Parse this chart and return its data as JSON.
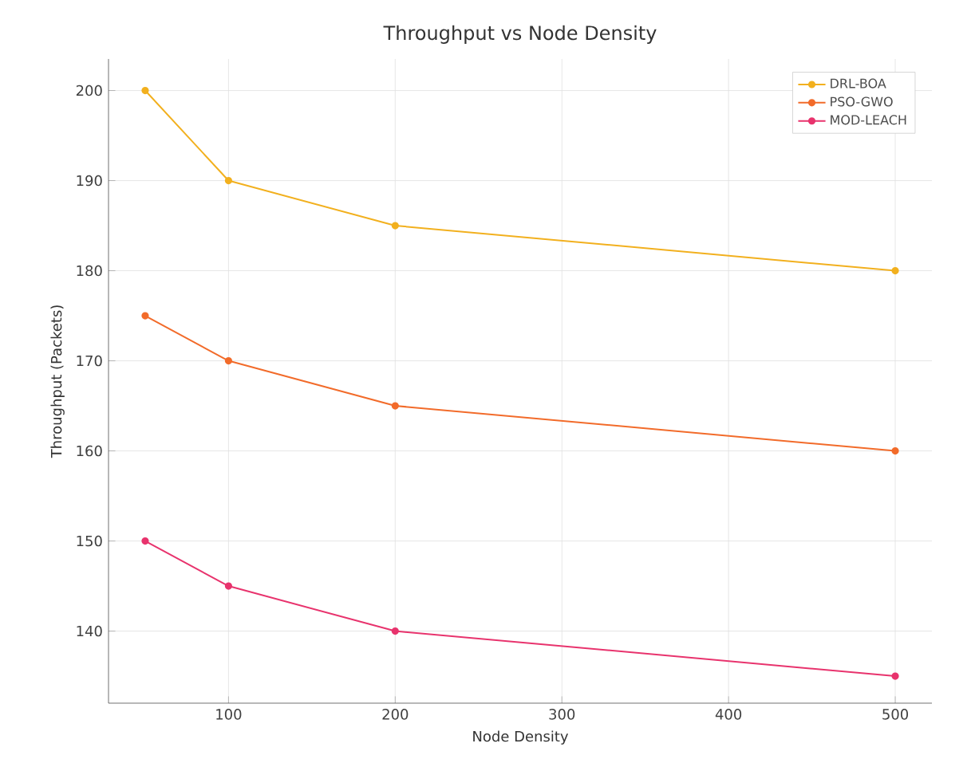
{
  "chart_data": {
    "type": "line",
    "title": "Throughput vs Node Density",
    "xlabel": "Node Density",
    "ylabel": "Throughput (Packets)",
    "x": [
      50,
      100,
      200,
      500
    ],
    "series": [
      {
        "name": "DRL-BOA",
        "color": "#f2b01e",
        "values": [
          200,
          190,
          185,
          180
        ]
      },
      {
        "name": "PSO-GWO",
        "color": "#f26b2a",
        "values": [
          175,
          170,
          165,
          160
        ]
      },
      {
        "name": "MOD-LEACH",
        "color": "#e8336d",
        "values": [
          150,
          145,
          140,
          135
        ]
      }
    ],
    "xlim": [
      28,
      522
    ],
    "xticks": [
      100,
      200,
      300,
      400,
      500
    ],
    "ylim": [
      132,
      203.5
    ],
    "yticks": [
      140,
      150,
      160,
      170,
      180,
      190,
      200
    ],
    "grid": true,
    "legend": "top right",
    "marker": "circle",
    "line_style": "solid"
  }
}
